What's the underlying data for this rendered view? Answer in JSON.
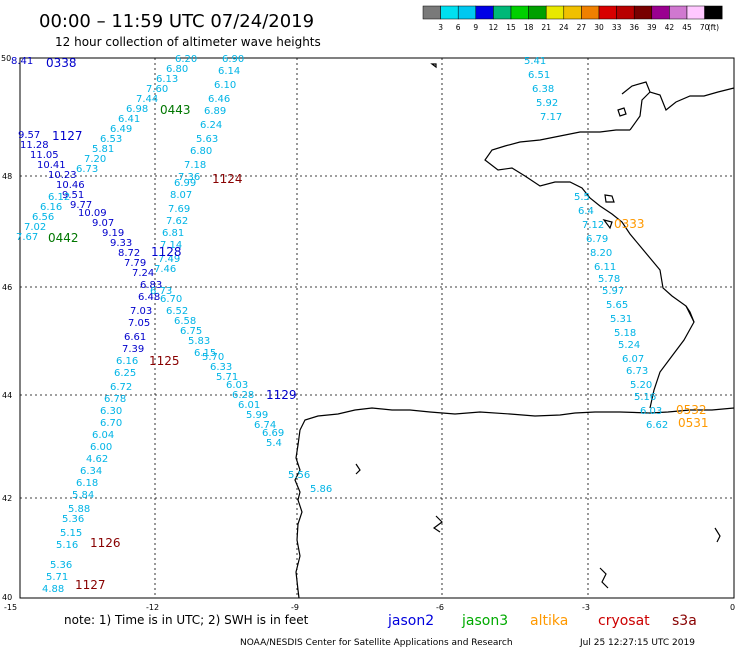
{
  "header": {
    "title": "00:00 – 11:59 UTC 07/24/2019",
    "subtitle": "12 hour collection of altimeter wave heights"
  },
  "colorbar": {
    "colors": [
      "#7a7a7a",
      "#00e0f0",
      "#00c8f0",
      "#0000e6",
      "#00b878",
      "#00d000",
      "#00a000",
      "#e8e800",
      "#f0c000",
      "#f08000",
      "#d80000",
      "#b80000",
      "#780000",
      "#9a0090",
      "#d078d0",
      "#ffc8ff",
      "#000000"
    ],
    "labels": [
      "3",
      "6",
      "9",
      "12",
      "15",
      "18",
      "21",
      "24",
      "27",
      "30",
      "33",
      "36",
      "39",
      "42",
      "45",
      "70",
      "(ft)"
    ]
  },
  "axes": {
    "lon_labels": [
      "-15",
      "-12",
      "-9",
      "-6",
      "-3",
      "0"
    ],
    "lat_labels": [
      "50",
      "48",
      "46",
      "44",
      "42",
      "40"
    ]
  },
  "tracks": {
    "t1": [
      "8.41",
      "9.57",
      "11.28",
      "11.05",
      "10.41",
      "10.23",
      "10.46",
      "9.51",
      "9.77",
      "10.09",
      "9.07",
      "9.19",
      "9.33",
      "8.72",
      "7.79",
      "7.24",
      "6.83",
      "6.48",
      "7.03",
      "7.05",
      "6.61",
      "7.39",
      "6.16",
      "6.25",
      "6.72",
      "6.78",
      "6.30",
      "6.70",
      "6.04",
      "6.00",
      "4.62",
      "6.34",
      "6.18",
      "5.84",
      "5.88",
      "5.36",
      "5.15",
      "5.16"
    ],
    "t2": [
      "6.20",
      "6.80",
      "6.13",
      "7.60",
      "7.44",
      "6.98",
      "6.41",
      "6.49",
      "6.53",
      "5.81",
      "7.20",
      "6.73",
      "6.12",
      "6.16",
      "6.56",
      "7.02",
      "7.67"
    ],
    "t3": [
      "6.90",
      "6.14",
      "6.10",
      "6.46",
      "6.89",
      "6.24",
      "5.63",
      "6.80",
      "7.18",
      "7.36",
      "6.99",
      "8.07",
      "7.69",
      "7.62",
      "6.81",
      "7.14",
      "7.49",
      "7.46",
      "6.73",
      "6.70",
      "6.52",
      "6.58",
      "6.75",
      "5.83",
      "6.15",
      "5.70",
      "6.33",
      "5.71",
      "6.03",
      "6.28",
      "6.01",
      "5.99",
      "6.74",
      "6.69",
      "5.4",
      "5.56",
      "5.86"
    ],
    "t4": [
      "5.36",
      "5.71",
      "4.88"
    ],
    "t5": [
      "5.41",
      "6.51",
      "6.38",
      "5.92",
      "7.17"
    ],
    "t6": [
      "5.5",
      "6.4",
      "7.12",
      "6.79",
      "8.20",
      "6.11",
      "5.78",
      "5.97",
      "5.65",
      "5.31",
      "5.18",
      "5.24",
      "6.07",
      "6.73",
      "5.20",
      "5.16",
      "6.03",
      "6.62"
    ]
  },
  "passes": {
    "p0338": "0338",
    "p0443": "0443",
    "p1127a": "1127",
    "p1124": "1124",
    "p0442": "0442",
    "p1128": "1128",
    "p1125": "1125",
    "p1129": "1129",
    "p1126": "1126",
    "p1127b": "1127",
    "p0333": "0333",
    "p0532": "0532",
    "p0531": "0531"
  },
  "legend": {
    "note": "note: 1) Time is in UTC; 2) SWH is in feet",
    "satellites": [
      {
        "name": "jason2",
        "color": "#0000dd"
      },
      {
        "name": "jason3",
        "color": "#00aa00"
      },
      {
        "name": "altika",
        "color": "#ff9900"
      },
      {
        "name": "cryosat",
        "color": "#cc0000"
      },
      {
        "name": "s3a",
        "color": "#880000"
      }
    ],
    "credit": "NOAA/NESDIS Center for Satellite Applications and Research",
    "timestamp": "Jul 25 12:27:15 UTC 2019"
  },
  "colors": {
    "track": "#00b4e6",
    "jason2": "#0000dd",
    "jason3": "#007700",
    "altika": "#ff9900",
    "cryosat": "#aa0000",
    "blue_values": "#0000cc"
  }
}
